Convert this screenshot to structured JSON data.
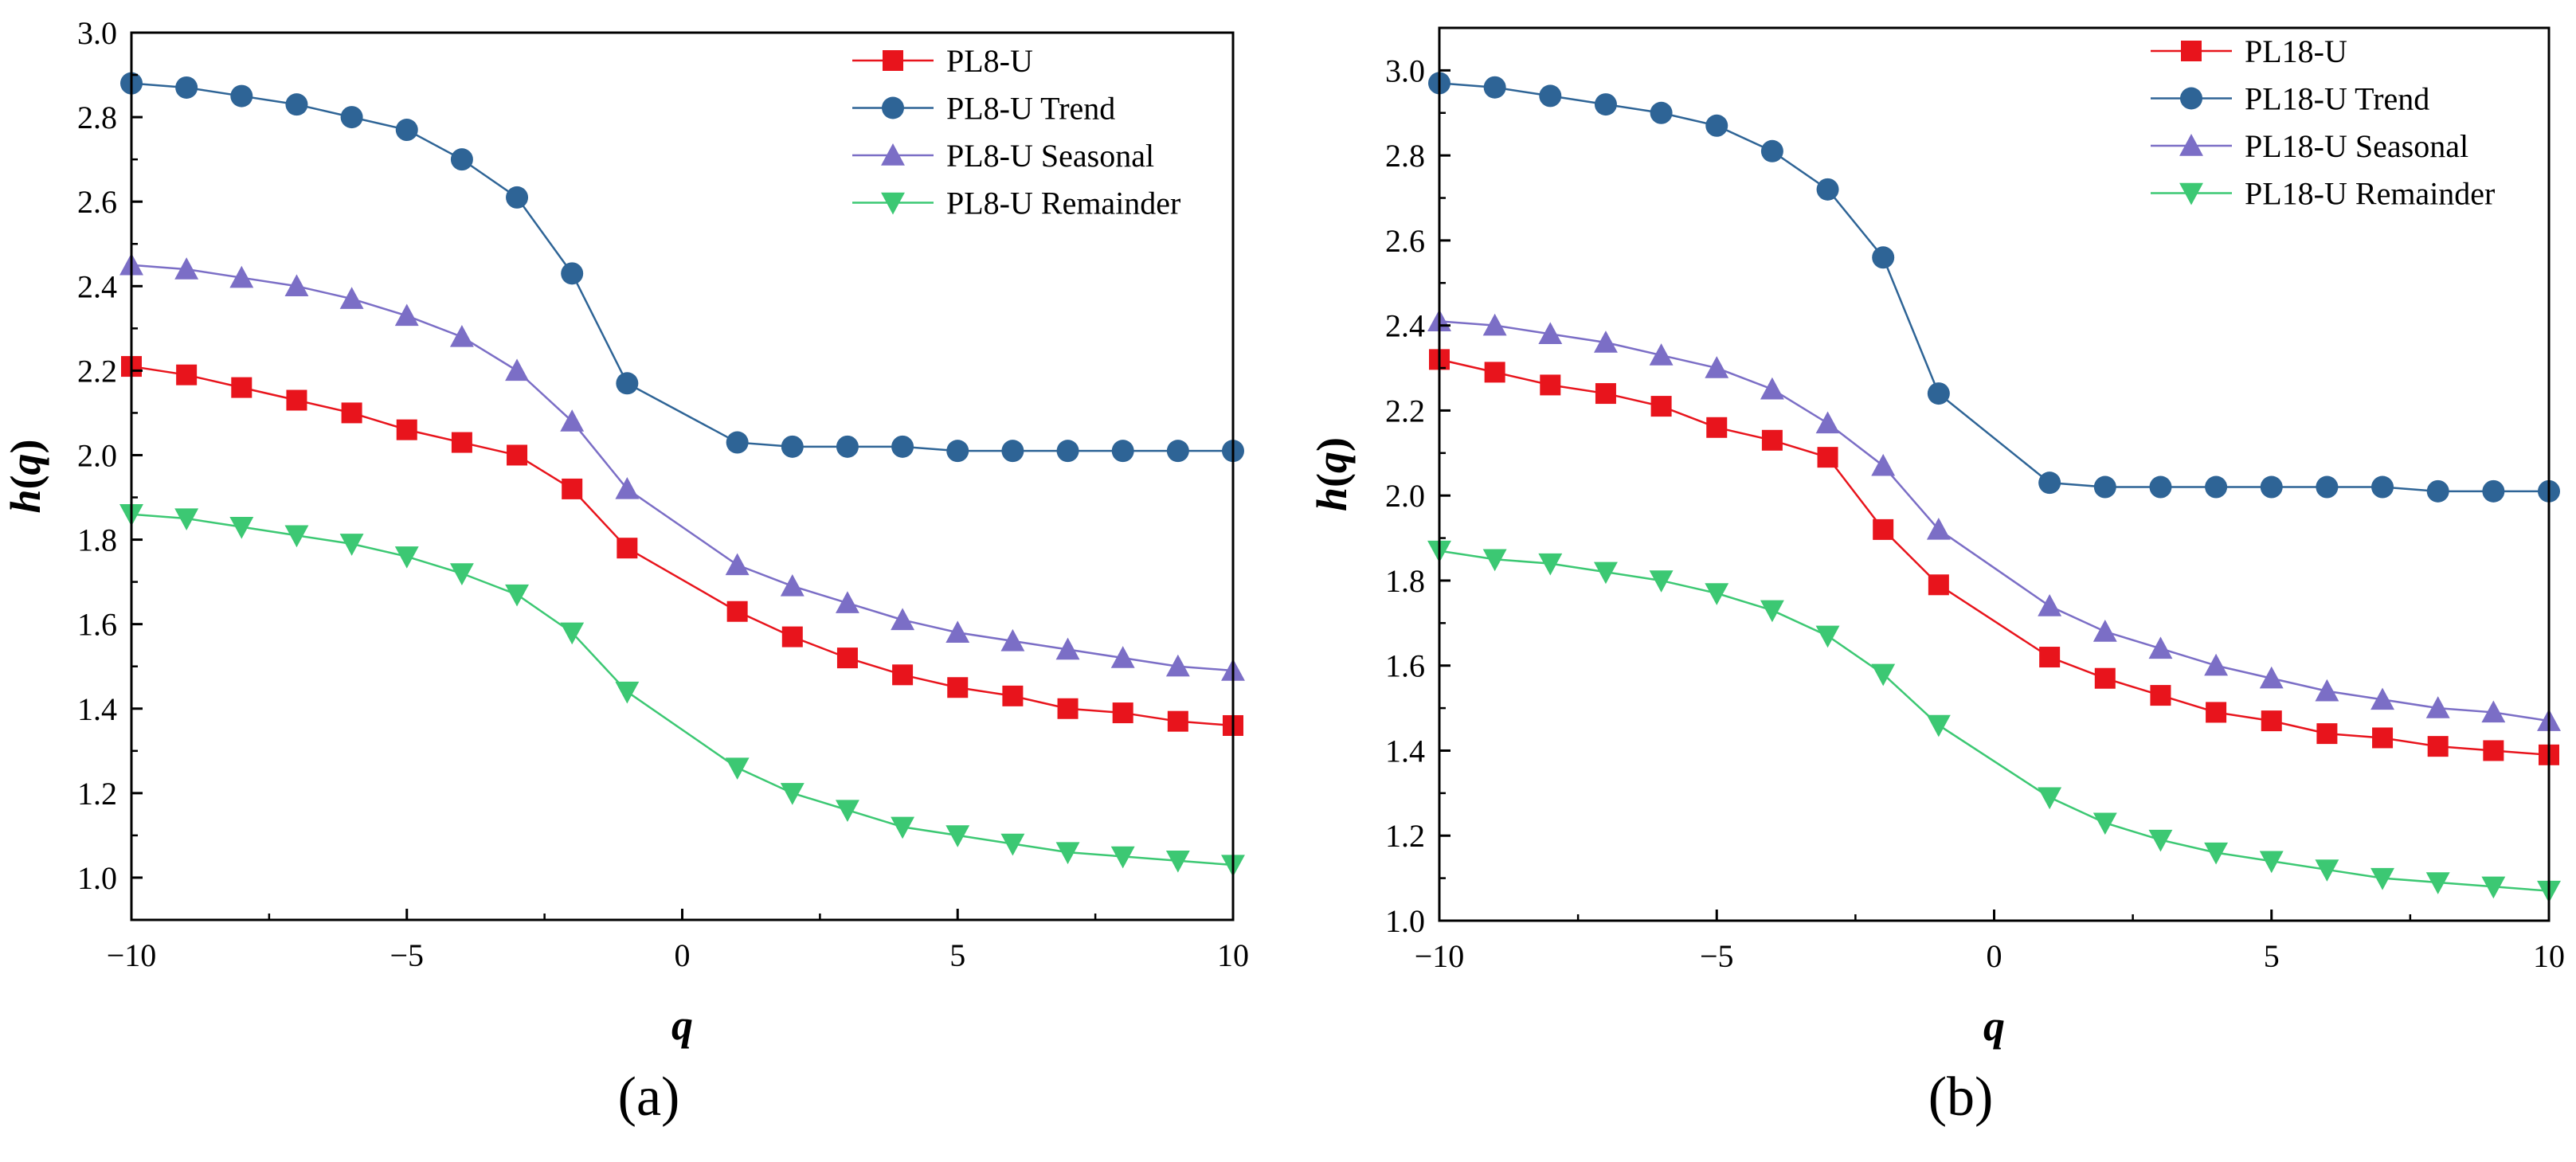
{
  "colors": {
    "series_a": "#e8141c",
    "trend": "#2e6496",
    "seasonal": "#7b6ec6",
    "remainder": "#3cc873",
    "axis": "#000000"
  },
  "chart_data": [
    {
      "type": "line",
      "panel_label": "(a)",
      "xlabel": "q",
      "ylabel": "h(q)",
      "ylabel_parts": {
        "pre": "h(",
        "var": "q",
        "post": ")"
      },
      "xlim": [
        -10,
        10
      ],
      "ylim": [
        0.9,
        3.0
      ],
      "xticks": [
        -10,
        -5,
        0,
        5,
        10
      ],
      "xtick_labels": [
        "−10",
        "−5",
        "0",
        "5",
        "10"
      ],
      "yticks": [
        1.0,
        1.2,
        1.4,
        1.6,
        1.8,
        2.0,
        2.2,
        2.4,
        2.6,
        2.8,
        3.0
      ],
      "ytick_labels": [
        "1.0",
        "1.2",
        "1.4",
        "1.6",
        "1.8",
        "2.0",
        "2.2",
        "2.4",
        "2.6",
        "2.8",
        "3.0"
      ],
      "x": [
        -10,
        -9,
        -8,
        -7,
        -6,
        -5,
        -4,
        -3,
        -2,
        -1,
        1,
        2,
        3,
        4,
        5,
        6,
        7,
        8,
        9,
        10
      ],
      "legend_position": "top-right",
      "series": [
        {
          "name": "PL8-U",
          "marker": "square",
          "color_key": "series_a",
          "values": [
            2.21,
            2.19,
            2.16,
            2.13,
            2.1,
            2.06,
            2.03,
            2.0,
            1.92,
            1.78,
            1.63,
            1.57,
            1.52,
            1.48,
            1.45,
            1.43,
            1.4,
            1.39,
            1.37,
            1.36
          ]
        },
        {
          "name": "PL8-U Trend",
          "marker": "circle",
          "color_key": "trend",
          "values": [
            2.88,
            2.87,
            2.85,
            2.83,
            2.8,
            2.77,
            2.7,
            2.61,
            2.43,
            2.17,
            2.03,
            2.02,
            2.02,
            2.02,
            2.01,
            2.01,
            2.01,
            2.01,
            2.01,
            2.01
          ]
        },
        {
          "name": "PL8-U Seasonal",
          "marker": "triangle-up",
          "color_key": "seasonal",
          "values": [
            2.45,
            2.44,
            2.42,
            2.4,
            2.37,
            2.33,
            2.28,
            2.2,
            2.08,
            1.92,
            1.74,
            1.69,
            1.65,
            1.61,
            1.58,
            1.56,
            1.54,
            1.52,
            1.5,
            1.49
          ]
        },
        {
          "name": "PL8-U Remainder",
          "marker": "triangle-down",
          "color_key": "remainder",
          "values": [
            1.86,
            1.85,
            1.83,
            1.81,
            1.79,
            1.76,
            1.72,
            1.67,
            1.58,
            1.44,
            1.26,
            1.2,
            1.16,
            1.12,
            1.1,
            1.08,
            1.06,
            1.05,
            1.04,
            1.03
          ]
        }
      ]
    },
    {
      "type": "line",
      "panel_label": "(b)",
      "xlabel": "q",
      "ylabel": "h(q)",
      "ylabel_parts": {
        "pre": "h(",
        "var": "q",
        "post": ")"
      },
      "xlim": [
        -10,
        10
      ],
      "ylim": [
        1.0,
        3.1
      ],
      "xticks": [
        -10,
        -5,
        0,
        5,
        10
      ],
      "xtick_labels": [
        "−10",
        "−5",
        "0",
        "5",
        "10"
      ],
      "yticks": [
        1.0,
        1.2,
        1.4,
        1.6,
        1.8,
        2.0,
        2.2,
        2.4,
        2.6,
        2.8,
        3.0
      ],
      "ytick_labels": [
        "1.0",
        "1.2",
        "1.4",
        "1.6",
        "1.8",
        "2.0",
        "2.2",
        "2.4",
        "2.6",
        "2.8",
        "3.0"
      ],
      "x": [
        -10,
        -9,
        -8,
        -7,
        -6,
        -5,
        -4,
        -3,
        -2,
        -1,
        1,
        2,
        3,
        4,
        5,
        6,
        7,
        8,
        9,
        10
      ],
      "legend_position": "top-right",
      "series": [
        {
          "name": "PL18-U",
          "marker": "square",
          "color_key": "series_a",
          "values": [
            2.32,
            2.29,
            2.26,
            2.24,
            2.21,
            2.16,
            2.13,
            2.09,
            1.92,
            1.79,
            1.62,
            1.57,
            1.53,
            1.49,
            1.47,
            1.44,
            1.43,
            1.41,
            1.4,
            1.39
          ]
        },
        {
          "name": "PL18-U Trend",
          "marker": "circle",
          "color_key": "trend",
          "values": [
            2.97,
            2.96,
            2.94,
            2.92,
            2.9,
            2.87,
            2.81,
            2.72,
            2.56,
            2.24,
            2.03,
            2.02,
            2.02,
            2.02,
            2.02,
            2.02,
            2.02,
            2.01,
            2.01,
            2.01
          ]
        },
        {
          "name": "PL18-U Seasonal",
          "marker": "triangle-up",
          "color_key": "seasonal",
          "values": [
            2.41,
            2.4,
            2.38,
            2.36,
            2.33,
            2.3,
            2.25,
            2.17,
            2.07,
            1.92,
            1.74,
            1.68,
            1.64,
            1.6,
            1.57,
            1.54,
            1.52,
            1.5,
            1.49,
            1.47
          ]
        },
        {
          "name": "PL18-U Remainder",
          "marker": "triangle-down",
          "color_key": "remainder",
          "values": [
            1.87,
            1.85,
            1.84,
            1.82,
            1.8,
            1.77,
            1.73,
            1.67,
            1.58,
            1.46,
            1.29,
            1.23,
            1.19,
            1.16,
            1.14,
            1.12,
            1.1,
            1.09,
            1.08,
            1.07
          ]
        }
      ]
    }
  ]
}
